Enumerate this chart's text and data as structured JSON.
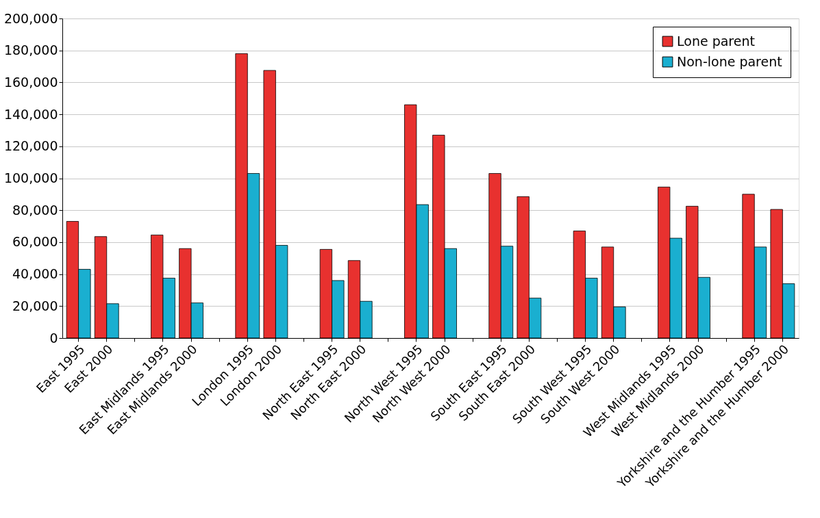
{
  "chart_data": {
    "type": "bar",
    "categories": [
      "East 1995",
      "East 2000",
      null,
      "East Midlands 1995",
      "East Midlands 2000",
      null,
      "London 1995",
      "London 2000",
      null,
      "North East 1995",
      "North East 2000",
      null,
      "North West 1995",
      "North West  2000",
      null,
      "South East 1995",
      "South East 2000",
      null,
      "South West 1995",
      "South West 2000",
      null,
      "West Midlands 1995",
      "West Midlands 2000",
      null,
      "Yorkshire and the Humber 1995",
      "Yorkshire and the Humber 2000"
    ],
    "series": [
      {
        "name": "Lone parent",
        "color": "#e8312f",
        "values": [
          73000,
          63500,
          null,
          64500,
          56000,
          null,
          178000,
          167500,
          null,
          55500,
          48500,
          null,
          146000,
          127000,
          null,
          103000,
          88500,
          null,
          67000,
          57000,
          null,
          94500,
          82500,
          null,
          90000,
          80500
        ]
      },
      {
        "name": "Non-lone parent",
        "color": "#1aafd0",
        "values": [
          43000,
          21500,
          null,
          37500,
          22000,
          null,
          103000,
          58000,
          null,
          36000,
          23000,
          null,
          83500,
          56000,
          null,
          57500,
          25000,
          null,
          37500,
          19500,
          null,
          62500,
          38000,
          null,
          57000,
          34000
        ]
      }
    ],
    "ylim": [
      0,
      200000
    ],
    "yticks": [
      0,
      {
        "value": 20000,
        "label": "20,000"
      },
      {
        "value": 40000,
        "label": "40,000"
      },
      {
        "value": 60000,
        "label": "60,000"
      },
      {
        "value": 80000,
        "label": "80,000"
      },
      {
        "value": 100000,
        "label": "100,000"
      },
      {
        "value": 120000,
        "label": "120,000"
      },
      {
        "value": 140000,
        "label": "140,000"
      },
      {
        "value": 160000,
        "label": "160,000"
      },
      {
        "value": 180000,
        "label": "180,000"
      },
      {
        "value": 200000,
        "label": "200,000"
      }
    ],
    "grid": "y",
    "legend": "top right"
  }
}
